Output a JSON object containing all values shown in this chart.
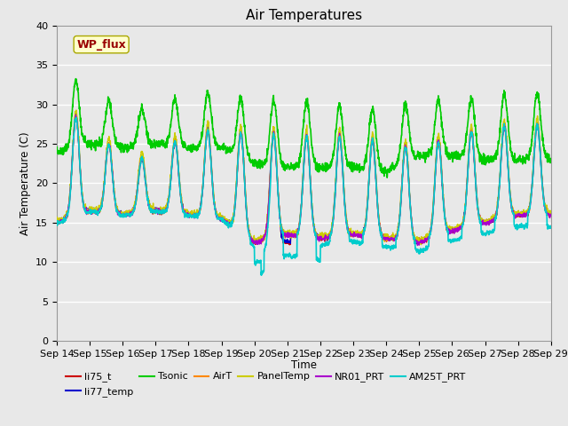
{
  "title": "Air Temperatures",
  "xlabel": "Time",
  "ylabel": "Air Temperature (C)",
  "ylim": [
    0,
    40
  ],
  "yticks": [
    0,
    5,
    10,
    15,
    20,
    25,
    30,
    35,
    40
  ],
  "x_labels": [
    "Sep 14",
    "Sep 15",
    "Sep 16",
    "Sep 17",
    "Sep 18",
    "Sep 19",
    "Sep 20",
    "Sep 21",
    "Sep 22",
    "Sep 23",
    "Sep 24",
    "Sep 25",
    "Sep 26",
    "Sep 27",
    "Sep 28",
    "Sep 29"
  ],
  "series_order": [
    "li75_t",
    "li77_temp",
    "Tsonic",
    "AirT",
    "PanelTemp",
    "NR01_PRT",
    "AM25T_PRT"
  ],
  "series": {
    "li75_t": {
      "color": "#cc0000",
      "lw": 1.0
    },
    "li77_temp": {
      "color": "#0000cc",
      "lw": 1.0
    },
    "Tsonic": {
      "color": "#00cc00",
      "lw": 1.2
    },
    "AirT": {
      "color": "#ff8800",
      "lw": 1.0
    },
    "PanelTemp": {
      "color": "#cccc00",
      "lw": 1.0
    },
    "NR01_PRT": {
      "color": "#aa00cc",
      "lw": 1.0
    },
    "AM25T_PRT": {
      "color": "#00cccc",
      "lw": 1.2
    }
  },
  "annotation_text": "WP_flux",
  "annotation_color": "#990000",
  "annotation_bg": "#ffffcc",
  "background_color": "#e8e8e8",
  "fig_facecolor": "#e8e8e8",
  "grid_color": "#ffffff"
}
